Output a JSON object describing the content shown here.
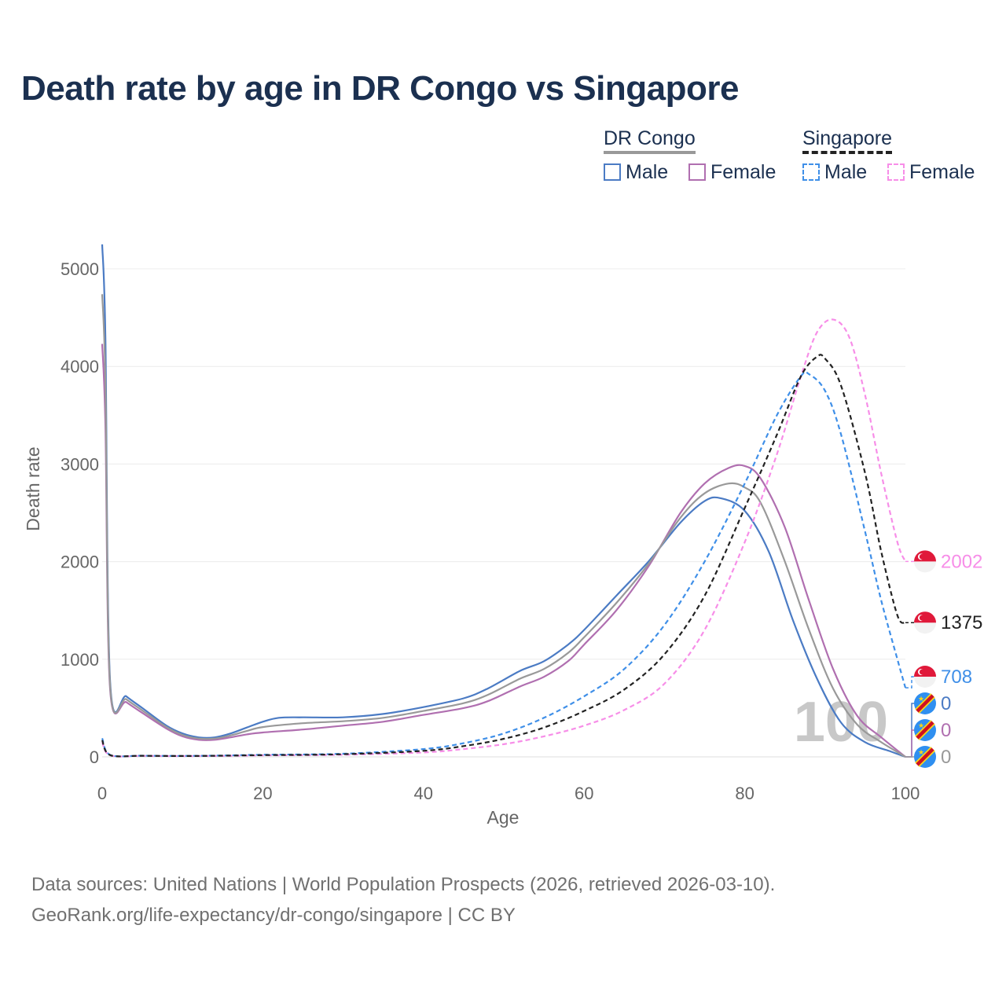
{
  "title": "Death rate by age in DR Congo vs Singapore",
  "legend": {
    "groups": [
      {
        "name": "DR Congo",
        "color": "#999999",
        "dash": false,
        "items": [
          {
            "label": "Male",
            "color": "#4b7bc4"
          },
          {
            "label": "Female",
            "color": "#b06fb0"
          }
        ]
      },
      {
        "name": "Singapore",
        "color": "#222222",
        "dash": true,
        "items": [
          {
            "label": "Male",
            "color": "#3f8fe8"
          },
          {
            "label": "Female",
            "color": "#f78ee8"
          }
        ]
      }
    ]
  },
  "footer": {
    "source": "Data sources: United Nations | World Population Prospects (2026, retrieved 2026-03-10).",
    "link": "GeoRank.org/life-expectancy/dr-congo/singapore | CC BY"
  },
  "chart_data": {
    "type": "line",
    "title": "Death rate by age in DR Congo vs Singapore",
    "xlabel": "Age",
    "ylabel": "Death rate",
    "xlim": [
      0,
      100
    ],
    "ylim": [
      0,
      5200
    ],
    "xticks": [
      0,
      20,
      40,
      60,
      80,
      100
    ],
    "yticks": [
      0,
      1000,
      2000,
      3000,
      4000,
      5000
    ],
    "current_age": "100",
    "series": [
      {
        "name": "DR Congo Male",
        "color": "#4b7bc4",
        "dash": false,
        "end_label": "0",
        "label_color": "#4b7bc4",
        "flag": "cd",
        "points": [
          [
            0,
            5250
          ],
          [
            0.4,
            4300
          ],
          [
            1,
            760
          ],
          [
            3,
            620
          ],
          [
            5,
            500
          ],
          [
            8,
            320
          ],
          [
            10,
            240
          ],
          [
            12,
            200
          ],
          [
            14,
            200
          ],
          [
            16,
            240
          ],
          [
            18,
            300
          ],
          [
            20,
            360
          ],
          [
            22,
            400
          ],
          [
            25,
            405
          ],
          [
            30,
            405
          ],
          [
            35,
            440
          ],
          [
            40,
            510
          ],
          [
            45,
            600
          ],
          [
            48,
            700
          ],
          [
            52,
            880
          ],
          [
            55,
            980
          ],
          [
            58,
            1150
          ],
          [
            60,
            1300
          ],
          [
            64,
            1650
          ],
          [
            68,
            2000
          ],
          [
            72,
            2400
          ],
          [
            75,
            2620
          ],
          [
            77,
            2650
          ],
          [
            80,
            2520
          ],
          [
            83,
            2100
          ],
          [
            86,
            1400
          ],
          [
            89,
            800
          ],
          [
            92,
            350
          ],
          [
            95,
            150
          ],
          [
            98,
            60
          ],
          [
            100,
            0
          ]
        ]
      },
      {
        "name": "DR Congo Female",
        "color": "#b06fb0",
        "dash": false,
        "end_label": "0",
        "label_color": "#b06fb0",
        "flag": "cd",
        "points": [
          [
            0,
            4230
          ],
          [
            0.4,
            3400
          ],
          [
            1,
            680
          ],
          [
            3,
            560
          ],
          [
            5,
            450
          ],
          [
            8,
            290
          ],
          [
            10,
            210
          ],
          [
            12,
            175
          ],
          [
            14,
            175
          ],
          [
            16,
            200
          ],
          [
            18,
            230
          ],
          [
            20,
            250
          ],
          [
            25,
            280
          ],
          [
            30,
            320
          ],
          [
            35,
            360
          ],
          [
            40,
            430
          ],
          [
            45,
            500
          ],
          [
            48,
            570
          ],
          [
            52,
            720
          ],
          [
            55,
            820
          ],
          [
            58,
            980
          ],
          [
            60,
            1150
          ],
          [
            64,
            1500
          ],
          [
            68,
            1950
          ],
          [
            72,
            2500
          ],
          [
            75,
            2800
          ],
          [
            78,
            2960
          ],
          [
            80,
            2980
          ],
          [
            82,
            2850
          ],
          [
            85,
            2350
          ],
          [
            88,
            1600
          ],
          [
            91,
            900
          ],
          [
            94,
            420
          ],
          [
            97,
            200
          ],
          [
            100,
            0
          ]
        ]
      },
      {
        "name": "DR Congo Total",
        "color": "#999999",
        "dash": false,
        "end_label": "0",
        "label_color": "#999999",
        "flag": "cd",
        "points": [
          [
            0,
            4740
          ],
          [
            0.4,
            3850
          ],
          [
            1,
            720
          ],
          [
            3,
            590
          ],
          [
            5,
            475
          ],
          [
            8,
            305
          ],
          [
            10,
            225
          ],
          [
            12,
            188
          ],
          [
            14,
            188
          ],
          [
            16,
            220
          ],
          [
            18,
            265
          ],
          [
            20,
            305
          ],
          [
            25,
            345
          ],
          [
            30,
            365
          ],
          [
            35,
            400
          ],
          [
            40,
            470
          ],
          [
            45,
            550
          ],
          [
            48,
            635
          ],
          [
            52,
            800
          ],
          [
            55,
            900
          ],
          [
            58,
            1065
          ],
          [
            60,
            1225
          ],
          [
            64,
            1575
          ],
          [
            68,
            1975
          ],
          [
            72,
            2450
          ],
          [
            75,
            2700
          ],
          [
            78,
            2800
          ],
          [
            80,
            2760
          ],
          [
            82,
            2600
          ],
          [
            85,
            2000
          ],
          [
            88,
            1300
          ],
          [
            91,
            700
          ],
          [
            94,
            330
          ],
          [
            97,
            150
          ],
          [
            100,
            0
          ]
        ]
      },
      {
        "name": "Singapore Male",
        "color": "#3f8fe8",
        "dash": true,
        "end_label": "708",
        "label_color": "#3f8fe8",
        "flag": "sg",
        "points": [
          [
            0,
            190
          ],
          [
            1,
            20
          ],
          [
            5,
            12
          ],
          [
            10,
            10
          ],
          [
            15,
            14
          ],
          [
            20,
            22
          ],
          [
            30,
            32
          ],
          [
            40,
            80
          ],
          [
            45,
            140
          ],
          [
            50,
            240
          ],
          [
            55,
            400
          ],
          [
            60,
            620
          ],
          [
            65,
            900
          ],
          [
            70,
            1350
          ],
          [
            75,
            2000
          ],
          [
            80,
            2800
          ],
          [
            84,
            3500
          ],
          [
            87,
            3900
          ],
          [
            88,
            3920
          ],
          [
            90,
            3750
          ],
          [
            92,
            3300
          ],
          [
            95,
            2300
          ],
          [
            97,
            1600
          ],
          [
            99,
            1000
          ],
          [
            100,
            708
          ]
        ]
      },
      {
        "name": "Singapore Female",
        "color": "#f78ee8",
        "dash": true,
        "end_label": "2002",
        "label_color": "#f78ee8",
        "flag": "sg",
        "points": [
          [
            0,
            150
          ],
          [
            1,
            15
          ],
          [
            5,
            10
          ],
          [
            10,
            8
          ],
          [
            15,
            10
          ],
          [
            20,
            15
          ],
          [
            30,
            22
          ],
          [
            40,
            45
          ],
          [
            45,
            80
          ],
          [
            50,
            130
          ],
          [
            55,
            210
          ],
          [
            60,
            320
          ],
          [
            65,
            480
          ],
          [
            70,
            750
          ],
          [
            75,
            1300
          ],
          [
            80,
            2200
          ],
          [
            84,
            3100
          ],
          [
            87,
            3900
          ],
          [
            89,
            4350
          ],
          [
            91,
            4480
          ],
          [
            93,
            4300
          ],
          [
            95,
            3700
          ],
          [
            97,
            2900
          ],
          [
            99,
            2200
          ],
          [
            100,
            2002
          ]
        ]
      },
      {
        "name": "Singapore Total",
        "color": "#222222",
        "dash": true,
        "end_label": "1375",
        "label_color": "#222222",
        "flag": "sg",
        "points": [
          [
            0,
            170
          ],
          [
            1,
            18
          ],
          [
            5,
            11
          ],
          [
            10,
            9
          ],
          [
            15,
            12
          ],
          [
            20,
            18
          ],
          [
            30,
            27
          ],
          [
            40,
            62
          ],
          [
            45,
            110
          ],
          [
            50,
            185
          ],
          [
            55,
            300
          ],
          [
            60,
            470
          ],
          [
            65,
            690
          ],
          [
            70,
            1050
          ],
          [
            75,
            1650
          ],
          [
            80,
            2550
          ],
          [
            84,
            3300
          ],
          [
            87,
            3900
          ],
          [
            89,
            4100
          ],
          [
            90,
            4080
          ],
          [
            92,
            3800
          ],
          [
            95,
            2900
          ],
          [
            97,
            2100
          ],
          [
            99,
            1450
          ],
          [
            100,
            1375
          ]
        ]
      }
    ]
  }
}
